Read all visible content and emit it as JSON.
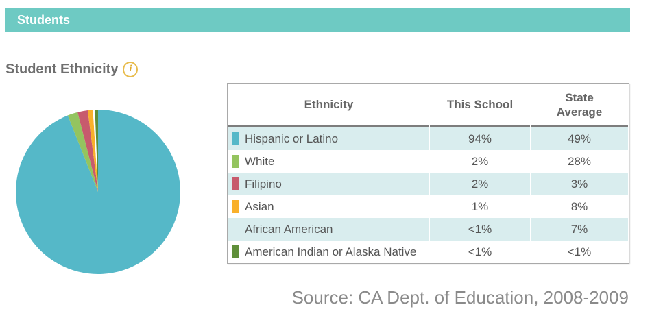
{
  "titlebar": {
    "label": "Students"
  },
  "section": {
    "title": "Student Ethnicity",
    "info_icon_glyph": "i"
  },
  "colors": {
    "titlebar_bg": "#6ecac3",
    "row_highlight_bg": "#d9edee",
    "info_icon_gold": "#e8bc4d"
  },
  "chart_data": {
    "type": "pie",
    "title": "Student Ethnicity",
    "direction": "clockwise",
    "start_angle_deg": 0,
    "legend_position": "table-right",
    "slices": [
      {
        "label": "Hispanic or Latino",
        "display": "94%",
        "value": 94,
        "color": "#55b8c8"
      },
      {
        "label": "White",
        "display": "2%",
        "value": 2,
        "color": "#94c45f"
      },
      {
        "label": "Filipino",
        "display": "2%",
        "value": 2,
        "color": "#c75b6d"
      },
      {
        "label": "Asian",
        "display": "1%",
        "value": 1,
        "color": "#f9b02b"
      },
      {
        "label": "African American",
        "display": "<1%",
        "value": 0.4,
        "color": "#ffffff"
      },
      {
        "label": "American Indian or Alaska Native",
        "display": "<1%",
        "value": 0.6,
        "color": "#5f8f3a"
      }
    ]
  },
  "table": {
    "columns": [
      "Ethnicity",
      "This School",
      "State Average"
    ],
    "rows": [
      {
        "ethnicity": "Hispanic or Latino",
        "swatch": "#55b8c8",
        "this_school": "94%",
        "state_average": "49%"
      },
      {
        "ethnicity": "White",
        "swatch": "#94c45f",
        "this_school": "2%",
        "state_average": "28%"
      },
      {
        "ethnicity": "Filipino",
        "swatch": "#c75b6d",
        "this_school": "2%",
        "state_average": "3%"
      },
      {
        "ethnicity": "Asian",
        "swatch": "#f9b02b",
        "this_school": "1%",
        "state_average": "8%"
      },
      {
        "ethnicity": "African American",
        "swatch": null,
        "this_school": "<1%",
        "state_average": "7%"
      },
      {
        "ethnicity": "American Indian or Alaska Native",
        "swatch": "#5f8f3a",
        "this_school": "<1%",
        "state_average": "<1%"
      }
    ]
  },
  "footer": {
    "source": "Source: CA Dept. of Education, 2008-2009"
  }
}
